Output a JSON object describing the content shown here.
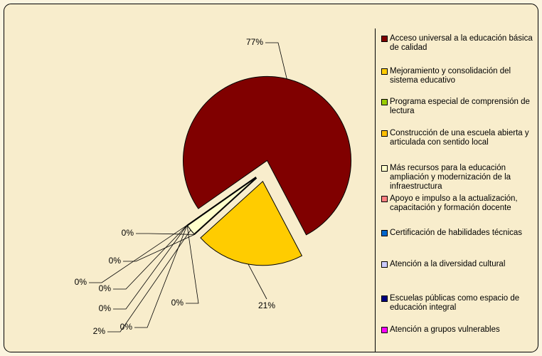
{
  "chart_data": {
    "type": "pie",
    "categories": [
      "Acceso universal a la educación básica de calidad",
      "Mejoramiento y consolidación del sistema educativo",
      "Programa especial de comprensión de lectura",
      "Construcción de una escuela abierta y articulada con sentido local",
      "Más recursos para la educación ampliación y modernización de la infraestructura",
      "Apoyo e impulso a la actualización, capacitación y formación docente",
      "Certificación de habilidades técnicas",
      "Atención a la diversidad cultural",
      "Escuelas públicas como espacio de educación integral",
      "Atención a grupos vulnerables"
    ],
    "values": [
      77,
      21,
      0,
      0,
      2,
      0,
      0,
      0,
      0,
      0
    ],
    "value_labels": [
      "77%",
      "21%",
      "0%",
      "0%",
      "2%",
      "0%",
      "0%",
      "0%",
      "0%",
      "0%"
    ],
    "colors": [
      "#800000",
      "#ffcc00",
      "#99cc00",
      "#ffc000",
      "#ffffcc",
      "#ff8080",
      "#0066cc",
      "#ccccff",
      "#000080",
      "#ff00ff"
    ]
  }
}
